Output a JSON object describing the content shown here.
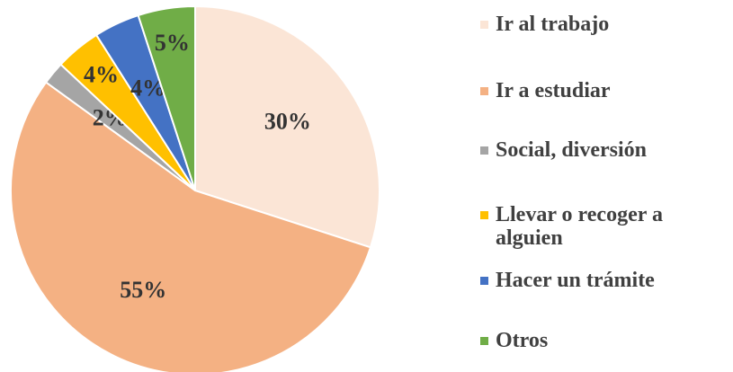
{
  "chart_data": {
    "type": "pie",
    "categories": [
      "Ir al trabajo",
      "Ir a estudiar",
      "Social, diversión",
      "Llevar o recoger a alguien",
      "Hacer un trámite",
      "Otros"
    ],
    "values": [
      30,
      55,
      2,
      4,
      4,
      5
    ],
    "value_labels": [
      "30%",
      "55%",
      "2%",
      "4%",
      "4%",
      "5%"
    ],
    "colors": [
      "#fbe5d6",
      "#f4b183",
      "#a5a5a5",
      "#ffc000",
      "#4472c4",
      "#70ad47"
    ],
    "legend": "right"
  }
}
